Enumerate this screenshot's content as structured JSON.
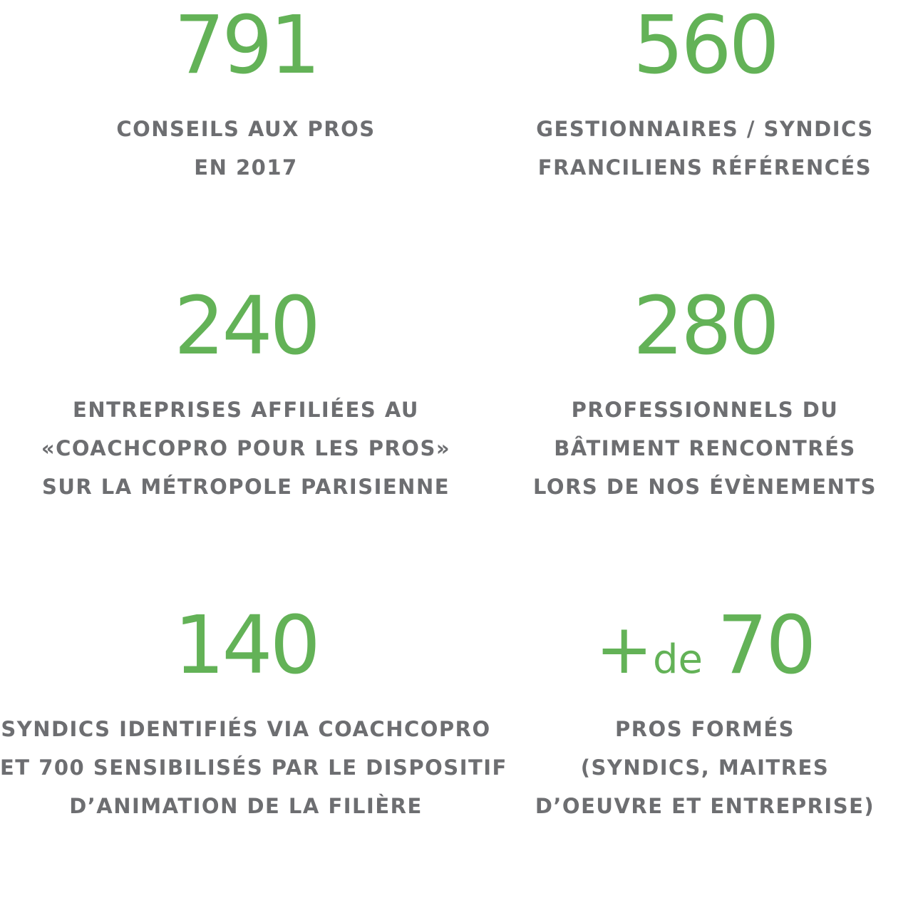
{
  "colors": {
    "number": "#63b257",
    "label": "#6d6e71",
    "background": "#ffffff"
  },
  "stats": [
    {
      "number": "791",
      "lines": [
        "CONSEILS AUX PROS",
        "EN 2017"
      ]
    },
    {
      "number": "560",
      "lines": [
        "GESTIONNAIRES / SYNDICS",
        "FRANCILIENS RÉFÉRENCÉS"
      ]
    },
    {
      "number": "240",
      "lines": [
        "ENTREPRISES AFFILIÉES AU",
        "«COACHCOPRO POUR LES PROS»",
        "SUR LA MÉTROPOLE PARISIENNE"
      ]
    },
    {
      "number": "280",
      "lines": [
        "PROFESSIONNELS DU",
        "BÂTIMENT RENCONTRÉS",
        "LORS DE NOS ÉVÈNEMENTS"
      ]
    },
    {
      "number": "140",
      "lines": [
        "SYNDICS IDENTIFIÉS VIA COACHCOPRO",
        "ET 700 SENSIBILISÉS PAR LE DISPOSITIF",
        "D’ANIMATION DE LA FILIÈRE"
      ]
    },
    {
      "prefix_plus": "+",
      "prefix_de": "de",
      "number": "70",
      "lines": [
        "PROS FORMÉS",
        "(SYNDICS, MAITRES",
        "D’OEUVRE ET ENTREPRISE)"
      ]
    }
  ]
}
